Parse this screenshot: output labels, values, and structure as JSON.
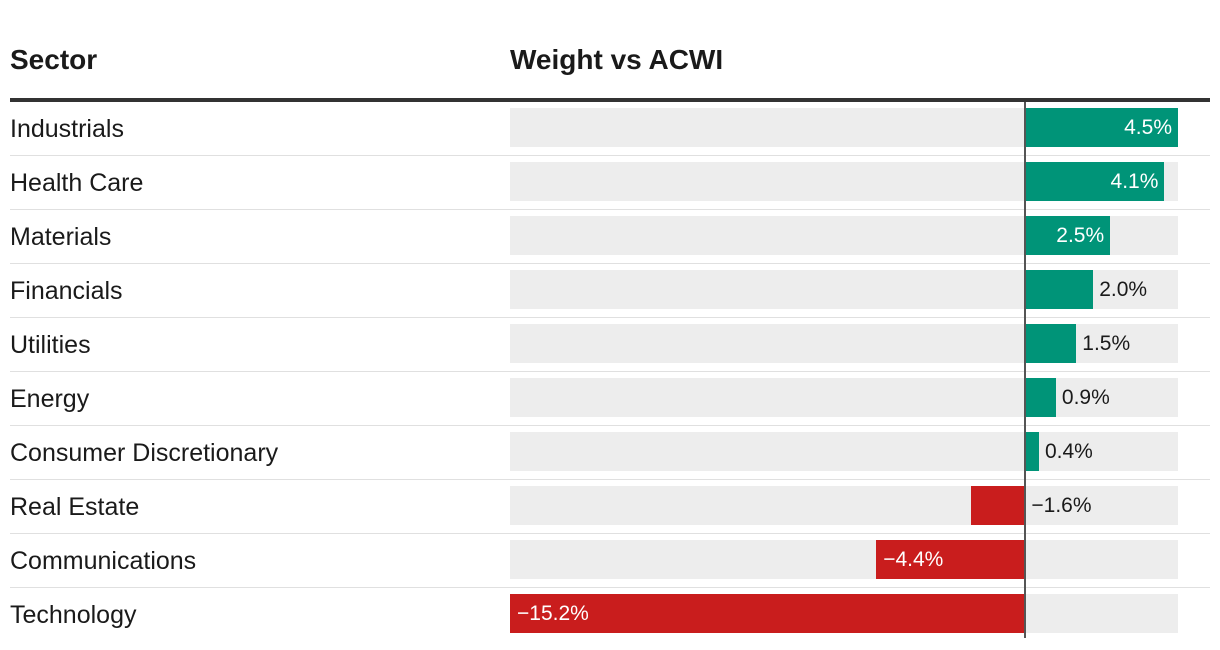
{
  "header": {
    "sector_label": "Sector",
    "value_label": "Weight vs ACWI"
  },
  "colors": {
    "positive": "#009478",
    "negative": "#c91d1d",
    "track": "#ededed",
    "text": "#1a1a1a",
    "label_on_bar": "#ffffff"
  },
  "chart_data": {
    "type": "bar",
    "orientation": "horizontal",
    "xlabel": "Weight vs ACWI",
    "unit": "%",
    "xlim": [
      -15.2,
      4.5
    ],
    "grid": false,
    "categories": [
      "Industrials",
      "Health Care",
      "Materials",
      "Financials",
      "Utilities",
      "Energy",
      "Consumer Discretionary",
      "Real Estate",
      "Communications",
      "Technology"
    ],
    "values": [
      4.5,
      4.1,
      2.5,
      2.0,
      1.5,
      0.9,
      0.4,
      -1.6,
      -4.4,
      -15.2
    ],
    "value_labels": [
      "4.5%",
      "4.1%",
      "2.5%",
      "2.0%",
      "1.5%",
      "0.9%",
      "0.4%",
      "−1.6%",
      "−4.4%",
      "−15.2%"
    ]
  }
}
